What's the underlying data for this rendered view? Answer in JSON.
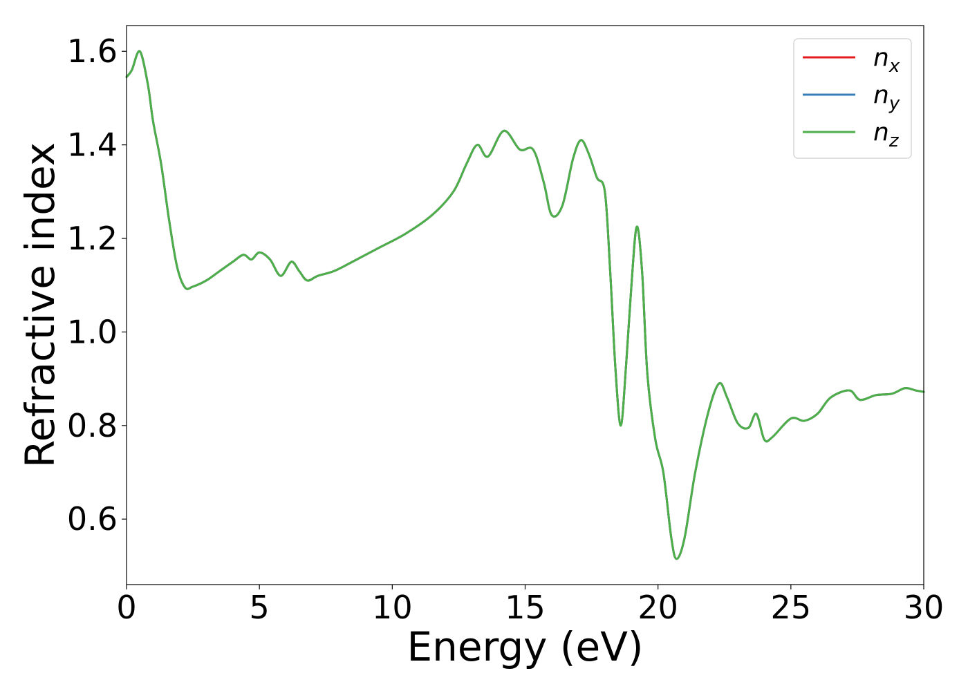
{
  "chart_data": {
    "type": "line",
    "xlabel": "Energy (eV)",
    "ylabel": "Refractive index",
    "xlim": [
      0,
      30
    ],
    "ylim": [
      0.46,
      1.655
    ],
    "xticks": [
      "0",
      "5",
      "10",
      "15",
      "20",
      "25",
      "30"
    ],
    "yticks": [
      "0.6",
      "0.8",
      "1.0",
      "1.2",
      "1.4",
      "1.6"
    ],
    "legend_position": "upper-right",
    "grid": false,
    "series": [
      {
        "name": "n",
        "subscript": "x",
        "color": "#e41a1c",
        "x": [
          0,
          0.2,
          0.5,
          0.8,
          1.0,
          1.3,
          1.6,
          1.9,
          2.2,
          2.5,
          3.0,
          3.5,
          4.0,
          4.4,
          4.7,
          5.0,
          5.4,
          5.8,
          6.2,
          6.5,
          6.8,
          7.2,
          7.8,
          8.5,
          9.5,
          10.5,
          11.5,
          12.3,
          12.8,
          13.2,
          13.6,
          14.2,
          14.8,
          15.3,
          15.7,
          16.0,
          16.4,
          16.8,
          17.1,
          17.4,
          17.7,
          18.0,
          18.2,
          18.4,
          18.6,
          18.8,
          19.0,
          19.2,
          19.4,
          19.6,
          19.9,
          20.2,
          20.5,
          20.7,
          21.0,
          21.4,
          21.9,
          22.3,
          22.6,
          23.0,
          23.4,
          23.7,
          24.0,
          24.3,
          25.0,
          25.5,
          26.0,
          26.5,
          27.2,
          27.6,
          28.2,
          28.8,
          29.3,
          29.7,
          30.0
        ],
        "y": [
          1.545,
          1.56,
          1.6,
          1.53,
          1.45,
          1.36,
          1.24,
          1.14,
          1.095,
          1.097,
          1.11,
          1.13,
          1.15,
          1.165,
          1.155,
          1.17,
          1.155,
          1.12,
          1.15,
          1.13,
          1.11,
          1.12,
          1.13,
          1.15,
          1.18,
          1.21,
          1.25,
          1.3,
          1.36,
          1.4,
          1.375,
          1.43,
          1.39,
          1.39,
          1.32,
          1.25,
          1.27,
          1.37,
          1.41,
          1.38,
          1.33,
          1.3,
          1.13,
          0.92,
          0.8,
          0.93,
          1.1,
          1.225,
          1.13,
          0.91,
          0.77,
          0.7,
          0.56,
          0.515,
          0.56,
          0.7,
          0.83,
          0.89,
          0.86,
          0.805,
          0.795,
          0.825,
          0.77,
          0.775,
          0.815,
          0.81,
          0.825,
          0.86,
          0.875,
          0.855,
          0.865,
          0.868,
          0.88,
          0.875,
          0.872
        ]
      },
      {
        "name": "n",
        "subscript": "y",
        "color": "#377eb8",
        "x": [
          0,
          0.2,
          0.5,
          0.8,
          1.0,
          1.3,
          1.6,
          1.9,
          2.2,
          2.5,
          3.0,
          3.5,
          4.0,
          4.4,
          4.7,
          5.0,
          5.4,
          5.8,
          6.2,
          6.5,
          6.8,
          7.2,
          7.8,
          8.5,
          9.5,
          10.5,
          11.5,
          12.3,
          12.8,
          13.2,
          13.6,
          14.2,
          14.8,
          15.3,
          15.7,
          16.0,
          16.4,
          16.8,
          17.1,
          17.4,
          17.7,
          18.0,
          18.2,
          18.4,
          18.6,
          18.8,
          19.0,
          19.2,
          19.4,
          19.6,
          19.9,
          20.2,
          20.5,
          20.7,
          21.0,
          21.4,
          21.9,
          22.3,
          22.6,
          23.0,
          23.4,
          23.7,
          24.0,
          24.3,
          25.0,
          25.5,
          26.0,
          26.5,
          27.2,
          27.6,
          28.2,
          28.8,
          29.3,
          29.7,
          30.0
        ],
        "y": [
          1.545,
          1.56,
          1.6,
          1.53,
          1.45,
          1.36,
          1.24,
          1.14,
          1.095,
          1.097,
          1.11,
          1.13,
          1.15,
          1.165,
          1.155,
          1.17,
          1.155,
          1.12,
          1.15,
          1.13,
          1.11,
          1.12,
          1.13,
          1.15,
          1.18,
          1.21,
          1.25,
          1.3,
          1.36,
          1.4,
          1.375,
          1.43,
          1.39,
          1.39,
          1.32,
          1.25,
          1.27,
          1.37,
          1.41,
          1.38,
          1.33,
          1.3,
          1.13,
          0.92,
          0.8,
          0.93,
          1.1,
          1.225,
          1.13,
          0.91,
          0.77,
          0.7,
          0.56,
          0.515,
          0.56,
          0.7,
          0.83,
          0.89,
          0.86,
          0.805,
          0.795,
          0.825,
          0.77,
          0.775,
          0.815,
          0.81,
          0.825,
          0.86,
          0.875,
          0.855,
          0.865,
          0.868,
          0.88,
          0.875,
          0.872
        ]
      },
      {
        "name": "n",
        "subscript": "z",
        "color": "#4daf4a",
        "x": [
          0,
          0.2,
          0.5,
          0.8,
          1.0,
          1.3,
          1.6,
          1.9,
          2.2,
          2.5,
          3.0,
          3.5,
          4.0,
          4.4,
          4.7,
          5.0,
          5.4,
          5.8,
          6.2,
          6.5,
          6.8,
          7.2,
          7.8,
          8.5,
          9.5,
          10.5,
          11.5,
          12.3,
          12.8,
          13.2,
          13.6,
          14.2,
          14.8,
          15.3,
          15.7,
          16.0,
          16.4,
          16.8,
          17.1,
          17.4,
          17.7,
          18.0,
          18.2,
          18.4,
          18.6,
          18.8,
          19.0,
          19.2,
          19.4,
          19.6,
          19.9,
          20.2,
          20.5,
          20.7,
          21.0,
          21.4,
          21.9,
          22.3,
          22.6,
          23.0,
          23.4,
          23.7,
          24.0,
          24.3,
          25.0,
          25.5,
          26.0,
          26.5,
          27.2,
          27.6,
          28.2,
          28.8,
          29.3,
          29.7,
          30.0
        ],
        "y": [
          1.545,
          1.56,
          1.6,
          1.53,
          1.45,
          1.36,
          1.24,
          1.14,
          1.095,
          1.097,
          1.11,
          1.13,
          1.15,
          1.165,
          1.155,
          1.17,
          1.155,
          1.12,
          1.15,
          1.13,
          1.11,
          1.12,
          1.13,
          1.15,
          1.18,
          1.21,
          1.25,
          1.3,
          1.36,
          1.4,
          1.375,
          1.43,
          1.39,
          1.39,
          1.32,
          1.25,
          1.27,
          1.37,
          1.41,
          1.38,
          1.33,
          1.3,
          1.13,
          0.92,
          0.8,
          0.93,
          1.1,
          1.225,
          1.13,
          0.91,
          0.77,
          0.7,
          0.56,
          0.515,
          0.56,
          0.7,
          0.83,
          0.89,
          0.86,
          0.805,
          0.795,
          0.825,
          0.77,
          0.775,
          0.815,
          0.81,
          0.825,
          0.86,
          0.875,
          0.855,
          0.865,
          0.868,
          0.88,
          0.875,
          0.872
        ]
      }
    ]
  }
}
